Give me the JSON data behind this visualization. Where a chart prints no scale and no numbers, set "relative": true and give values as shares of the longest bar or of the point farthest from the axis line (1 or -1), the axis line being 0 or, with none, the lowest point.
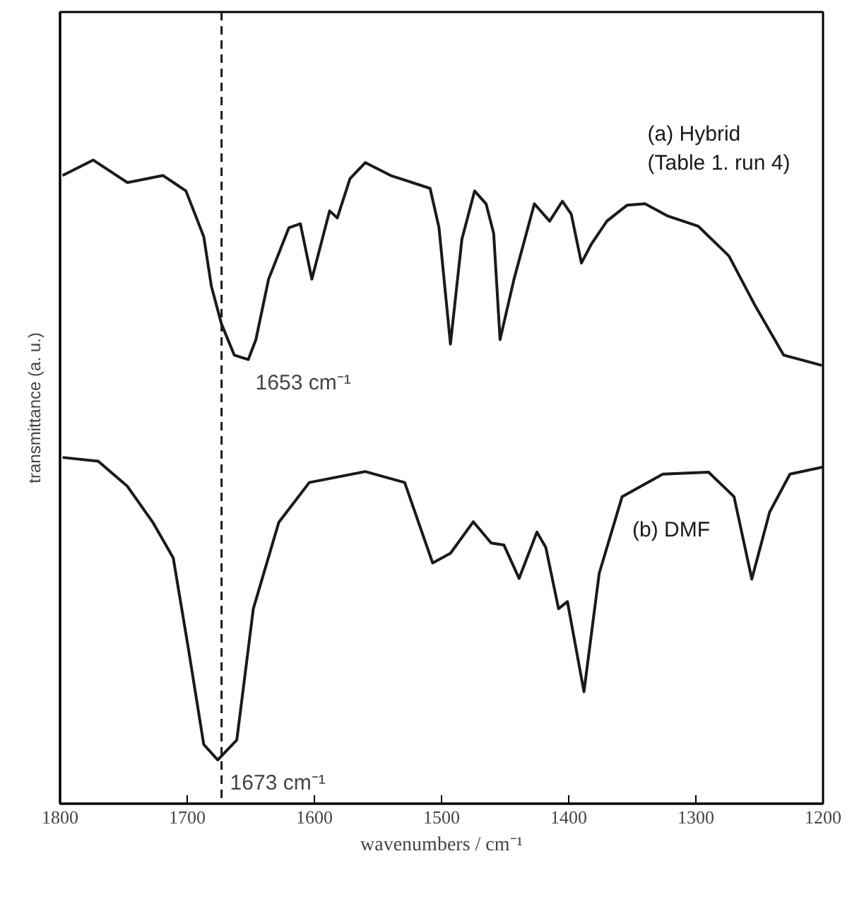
{
  "chart_data": {
    "type": "line",
    "relative": true,
    "xlabel": "wavenumbers / cm⁻¹",
    "ylabel": "transmittance (a. u.)",
    "xlim": [
      1800,
      1200
    ],
    "xticks": [
      1800,
      1700,
      1600,
      1500,
      1400,
      1300,
      1200
    ],
    "grid": false,
    "marker": "none",
    "line_style": "solid",
    "series": [
      {
        "name": "(a) Hybrid\n(Table 1. run 4)",
        "color": "#1a1a1a",
        "x": [
          1798,
          1774,
          1747,
          1719,
          1701,
          1687,
          1681,
          1673,
          1663,
          1652,
          1646,
          1636,
          1620,
          1611,
          1602,
          1588,
          1582,
          1572,
          1560,
          1540,
          1509,
          1502,
          1493,
          1484,
          1474,
          1465,
          1459,
          1454,
          1443,
          1427,
          1415,
          1405,
          1398,
          1390,
          1382,
          1370,
          1354,
          1340,
          1322,
          1298,
          1274,
          1254,
          1231,
          1201
        ],
        "values": [
          0.976,
          1.0,
          0.965,
          0.976,
          0.952,
          0.881,
          0.804,
          0.745,
          0.697,
          0.69,
          0.721,
          0.815,
          0.895,
          0.901,
          0.815,
          0.921,
          0.91,
          0.971,
          0.996,
          0.976,
          0.956,
          0.895,
          0.714,
          0.877,
          0.952,
          0.932,
          0.886,
          0.721,
          0.815,
          0.932,
          0.905,
          0.936,
          0.916,
          0.84,
          0.87,
          0.905,
          0.93,
          0.932,
          0.913,
          0.897,
          0.851,
          0.776,
          0.697,
          0.681
        ]
      },
      {
        "name": "(b) DMF",
        "color": "#1a1a1a",
        "x": [
          1798,
          1770,
          1747,
          1727,
          1711,
          1699,
          1687,
          1676,
          1661,
          1648,
          1628,
          1604,
          1560,
          1529,
          1507,
          1493,
          1475,
          1461,
          1451,
          1439,
          1425,
          1418,
          1408,
          1401,
          1388,
          1376,
          1358,
          1326,
          1290,
          1270,
          1256,
          1242,
          1226,
          1200
        ],
        "values": [
          0.538,
          0.532,
          0.493,
          0.437,
          0.382,
          0.24,
          0.092,
          0.068,
          0.099,
          0.303,
          0.437,
          0.499,
          0.516,
          0.499,
          0.374,
          0.389,
          0.438,
          0.405,
          0.402,
          0.35,
          0.422,
          0.398,
          0.303,
          0.314,
          0.174,
          0.358,
          0.477,
          0.512,
          0.515,
          0.477,
          0.349,
          0.453,
          0.512,
          0.523
        ]
      }
    ],
    "ref_lines": [
      {
        "axis": "x",
        "value": 1673,
        "label": null,
        "color": "#1a1a1a",
        "line_style": "dashed"
      }
    ],
    "annotations": [
      {
        "text": "1653 cm⁻¹",
        "x": 1653,
        "y": 0.69
      },
      {
        "text": "1673 cm⁻¹",
        "x": 1673,
        "y": 0.068
      }
    ]
  }
}
